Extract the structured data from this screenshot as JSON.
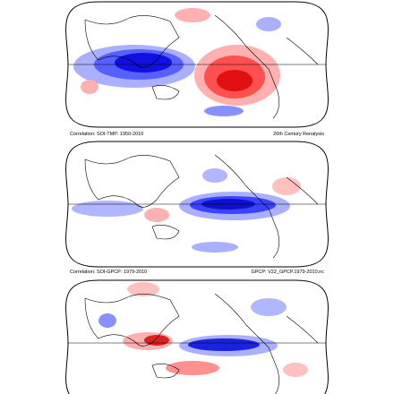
{
  "panels": [
    {
      "caption_left": "Correlation: SOI-TMP: 1950-2010",
      "caption_right": "20th Century Renalysis"
    },
    {
      "caption_left": "Correlation: SOI-GPCP: 1979-2010",
      "caption_right": "GPCP: V22_GPCP.1979-2010.nc"
    },
    {}
  ]
}
